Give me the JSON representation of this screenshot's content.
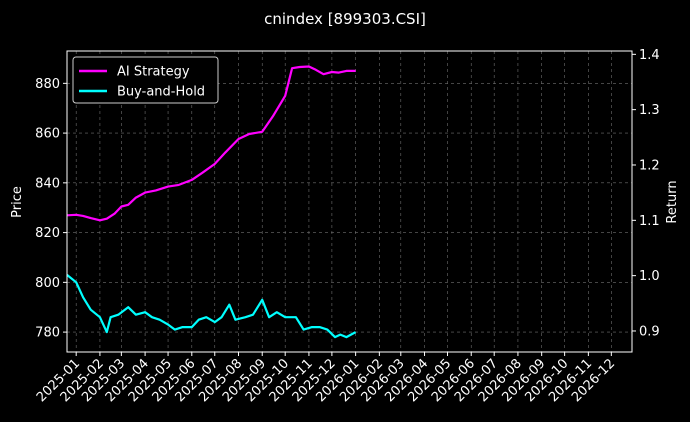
{
  "chart_data": {
    "type": "line",
    "title": "cnindex [899303.CSI]",
    "ylabel_left": "Price",
    "ylabel_right": "Return",
    "ylim_left": [
      772,
      893
    ],
    "ylim_right": [
      0.862,
      1.406
    ],
    "xlim": [
      "2024-12-20",
      "2026-12-28"
    ],
    "left_ticks": [
      780,
      800,
      820,
      840,
      860,
      880
    ],
    "right_ticks": [
      0.9,
      1.0,
      1.1,
      1.2,
      1.3,
      1.4
    ],
    "x_tick_dates": [
      "2025-01-01",
      "2025-02-01",
      "2025-03-01",
      "2025-04-01",
      "2025-05-01",
      "2025-06-01",
      "2025-07-01",
      "2025-08-01",
      "2025-09-01",
      "2025-10-01",
      "2025-11-01",
      "2025-12-01",
      "2026-01-01",
      "2026-02-01",
      "2026-03-01",
      "2026-04-01",
      "2026-05-01",
      "2026-06-01",
      "2026-07-01",
      "2026-08-01",
      "2026-09-01",
      "2026-10-01",
      "2026-11-01",
      "2026-12-01"
    ],
    "x_tick_labels": [
      "2025-01",
      "2025-02",
      "2025-03",
      "2025-04",
      "2025-05",
      "2025-06",
      "2025-07",
      "2025-08",
      "2025-09",
      "2025-10",
      "2025-11",
      "2025-12",
      "2026-01",
      "2026-02",
      "2026-03",
      "2026-04",
      "2026-05",
      "2026-06",
      "2026-07",
      "2026-08",
      "2026-09",
      "2026-10",
      "2026-11",
      "2026-12"
    ],
    "grid": true,
    "legend": "top-left",
    "series": [
      {
        "name": "AI Strategy",
        "axis": "right",
        "color": "#ff00ff",
        "points": [
          [
            "2024-12-20",
            1.109
          ],
          [
            "2025-01-01",
            1.11
          ],
          [
            "2025-01-10",
            1.108
          ],
          [
            "2025-01-20",
            1.104
          ],
          [
            "2025-02-01",
            1.1
          ],
          [
            "2025-02-10",
            1.103
          ],
          [
            "2025-02-20",
            1.112
          ],
          [
            "2025-03-01",
            1.125
          ],
          [
            "2025-03-10",
            1.128
          ],
          [
            "2025-03-20",
            1.141
          ],
          [
            "2025-04-01",
            1.15
          ],
          [
            "2025-04-15",
            1.154
          ],
          [
            "2025-05-01",
            1.161
          ],
          [
            "2025-05-15",
            1.164
          ],
          [
            "2025-06-01",
            1.173
          ],
          [
            "2025-06-15",
            1.186
          ],
          [
            "2025-07-01",
            1.202
          ],
          [
            "2025-07-15",
            1.223
          ],
          [
            "2025-08-01",
            1.247
          ],
          [
            "2025-08-15",
            1.256
          ],
          [
            "2025-09-01",
            1.26
          ],
          [
            "2025-09-15",
            1.288
          ],
          [
            "2025-10-01",
            1.325
          ],
          [
            "2025-10-10",
            1.375
          ],
          [
            "2025-10-20",
            1.377
          ],
          [
            "2025-11-01",
            1.378
          ],
          [
            "2025-11-10",
            1.372
          ],
          [
            "2025-11-20",
            1.364
          ],
          [
            "2025-12-01",
            1.368
          ],
          [
            "2025-12-10",
            1.367
          ],
          [
            "2025-12-20",
            1.37
          ],
          [
            "2026-01-01",
            1.37
          ]
        ]
      },
      {
        "name": "Buy-and-Hold",
        "axis": "left",
        "color": "#00ffff",
        "points": [
          [
            "2024-12-20",
            803
          ],
          [
            "2025-01-01",
            800
          ],
          [
            "2025-01-10",
            794
          ],
          [
            "2025-01-20",
            789
          ],
          [
            "2025-02-01",
            786
          ],
          [
            "2025-02-10",
            780
          ],
          [
            "2025-02-15",
            786
          ],
          [
            "2025-02-25",
            787
          ],
          [
            "2025-03-10",
            790
          ],
          [
            "2025-03-20",
            787
          ],
          [
            "2025-04-01",
            788
          ],
          [
            "2025-04-10",
            786
          ],
          [
            "2025-04-20",
            785
          ],
          [
            "2025-05-01",
            783
          ],
          [
            "2025-05-10",
            781
          ],
          [
            "2025-05-20",
            782
          ],
          [
            "2025-06-01",
            782
          ],
          [
            "2025-06-10",
            785
          ],
          [
            "2025-06-20",
            786
          ],
          [
            "2025-07-01",
            784
          ],
          [
            "2025-07-10",
            786
          ],
          [
            "2025-07-20",
            791
          ],
          [
            "2025-07-28",
            785
          ],
          [
            "2025-08-10",
            786
          ],
          [
            "2025-08-20",
            787
          ],
          [
            "2025-09-01",
            793
          ],
          [
            "2025-09-10",
            786
          ],
          [
            "2025-09-20",
            788
          ],
          [
            "2025-10-01",
            786
          ],
          [
            "2025-10-15",
            786
          ],
          [
            "2025-10-25",
            781
          ],
          [
            "2025-11-05",
            782
          ],
          [
            "2025-11-15",
            782
          ],
          [
            "2025-11-25",
            781
          ],
          [
            "2025-12-05",
            778
          ],
          [
            "2025-12-12",
            779
          ],
          [
            "2025-12-20",
            778
          ],
          [
            "2026-01-01",
            780
          ]
        ]
      }
    ]
  }
}
